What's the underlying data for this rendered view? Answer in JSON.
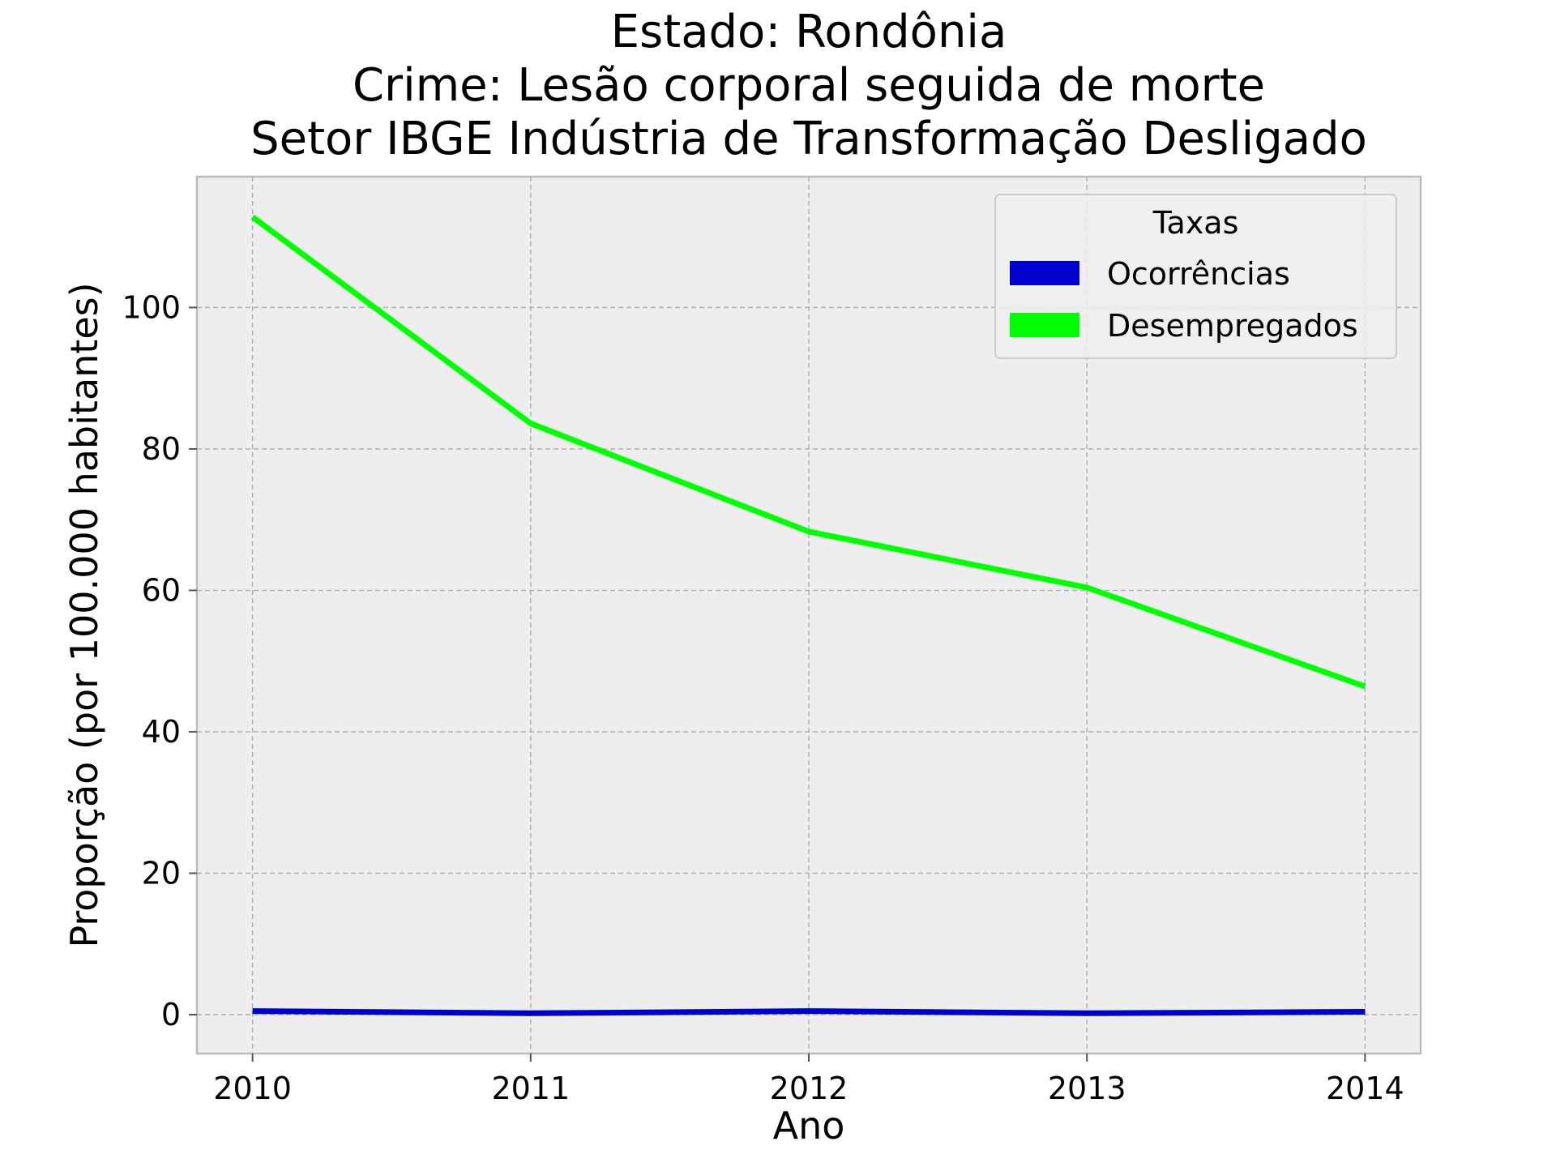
{
  "chart_data": {
    "type": "line",
    "title": [
      "Estado: Rondônia",
      "Crime: Lesão corporal seguida de morte",
      "Setor IBGE  Indústria de Transformação   Desligado"
    ],
    "xlabel": "Ano",
    "ylabel": "Proporção (por 100.000 habitantes)",
    "x": [
      2010,
      2011,
      2012,
      2013,
      2014
    ],
    "xlim": [
      2009.8,
      2014.2
    ],
    "ylim": [
      -5.5,
      118.5
    ],
    "yticks": [
      0,
      20,
      40,
      60,
      80,
      100
    ],
    "grid": true,
    "legend": {
      "title": "Taxas",
      "position": "top-right"
    },
    "series": [
      {
        "name": "Ocorrências",
        "color": "#0000cc",
        "values": [
          0.5,
          0.2,
          0.5,
          0.2,
          0.4
        ]
      },
      {
        "name": "Desempregados",
        "color": "#00ff00",
        "values": [
          112.8,
          83.6,
          68.3,
          60.4,
          46.4
        ]
      }
    ],
    "colors": {
      "plot_background": "#eeeeee",
      "grid": "#b0b0b0",
      "frame": "#bcbcbc"
    }
  }
}
